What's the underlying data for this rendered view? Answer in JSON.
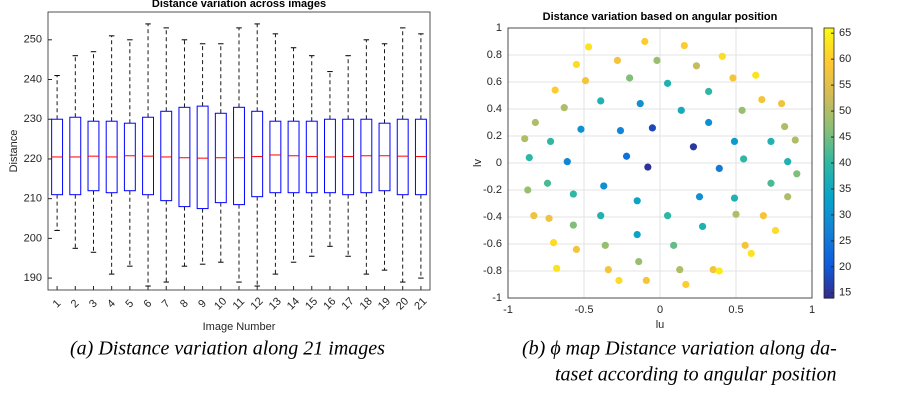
{
  "chart_data": [
    {
      "type": "box",
      "title": "Distance variation across images",
      "xlabel": "Image Number",
      "ylabel": "Distance",
      "categories": [
        "1",
        "2",
        "3",
        "4",
        "5",
        "6",
        "7",
        "8",
        "9",
        "10",
        "11",
        "12",
        "13",
        "14",
        "15",
        "16",
        "17",
        "18",
        "19",
        "20",
        "21"
      ],
      "whisker_low": [
        202,
        197.5,
        196.5,
        191,
        193,
        188,
        189,
        193,
        193.5,
        194,
        189,
        188,
        191,
        194,
        195.5,
        198,
        195.5,
        191,
        192,
        189,
        190
      ],
      "q1": [
        211,
        211,
        212,
        211.5,
        212,
        211,
        209.5,
        208,
        207.5,
        209,
        208.5,
        210.5,
        211.5,
        211.5,
        211.5,
        211.5,
        211,
        211.5,
        212,
        211,
        211
      ],
      "median": [
        220.5,
        220.5,
        220.7,
        220.5,
        220.8,
        220.7,
        220.5,
        220.3,
        220.2,
        220.3,
        220.3,
        220.6,
        221,
        220.8,
        220.6,
        220.5,
        220.6,
        220.8,
        220.8,
        220.7,
        220.6
      ],
      "q3": [
        230,
        230.5,
        229.5,
        229.5,
        229,
        230.5,
        232,
        233,
        233.3,
        231.5,
        233,
        232,
        229.5,
        229.5,
        229.5,
        230,
        230,
        230,
        229,
        230,
        230
      ],
      "whisker_high": [
        241,
        246,
        247,
        251,
        250,
        254,
        253,
        250,
        249,
        249,
        253,
        254,
        251.5,
        248,
        246,
        242,
        246,
        250,
        249,
        253,
        251.5
      ],
      "box_color": "#0000ff",
      "median_color": "#ff0000",
      "whisker_color": "#000000",
      "ylim": [
        187,
        257
      ],
      "yticks": [
        190,
        200,
        210,
        220,
        230,
        240,
        250
      ],
      "grid": false,
      "caption": [
        "(a)   Distance variation along 21 images"
      ]
    },
    {
      "type": "scatter",
      "title": "Distance variation based on angular position",
      "xlabel": "lu",
      "ylabel": "lv",
      "x": [
        -0.47,
        -0.1,
        0.16,
        0.41,
        0.63,
        -0.55,
        -0.28,
        -0.02,
        0.24,
        0.48,
        -0.69,
        -0.2,
        -0.49,
        0.05,
        0.32,
        0.67,
        -0.82,
        -0.63,
        -0.39,
        -0.13,
        0.14,
        0.54,
        0.8,
        0.82,
        -0.89,
        -0.72,
        -0.52,
        -0.26,
        -0.05,
        0.32,
        0.49,
        0.73,
        0.89,
        -0.86,
        -0.61,
        -0.22,
        0.22,
        0.55,
        0.84,
        0.9,
        -0.74,
        -0.37,
        -0.08,
        0.39,
        0.73,
        -0.87,
        -0.57,
        0.26,
        0.49,
        0.84,
        -0.15,
        -0.39,
        -0.83,
        -0.73,
        -0.57,
        0.05,
        0.28,
        0.5,
        0.68,
        0.76,
        -0.7,
        -0.36,
        -0.15,
        0.09,
        -0.55,
        0.56,
        0.6,
        -0.68,
        -0.34,
        -0.14,
        0.13,
        0.35,
        -0.27,
        -0.09,
        0.17,
        0.39
      ],
      "y": [
        0.86,
        0.9,
        0.87,
        0.79,
        0.65,
        0.73,
        0.76,
        0.76,
        0.72,
        0.63,
        0.54,
        0.63,
        0.61,
        0.59,
        0.53,
        0.47,
        0.3,
        0.41,
        0.46,
        0.44,
        0.39,
        0.39,
        0.44,
        0.27,
        0.18,
        0.16,
        0.25,
        0.24,
        0.26,
        0.3,
        0.16,
        0.16,
        0.17,
        0.04,
        0.01,
        0.05,
        0.12,
        0.03,
        0.01,
        -0.08,
        -0.15,
        -0.17,
        -0.03,
        -0.04,
        -0.15,
        -0.2,
        -0.23,
        -0.25,
        -0.26,
        -0.25,
        -0.28,
        -0.39,
        -0.39,
        -0.41,
        -0.46,
        -0.39,
        -0.47,
        -0.38,
        -0.39,
        -0.5,
        -0.59,
        -0.61,
        -0.53,
        -0.61,
        -0.64,
        -0.61,
        -0.67,
        -0.78,
        -0.79,
        -0.73,
        -0.79,
        -0.79,
        -0.87,
        -0.87,
        -0.9,
        -0.8
      ],
      "c": [
        63,
        60,
        60,
        62,
        63,
        62,
        58,
        48,
        52,
        58,
        60,
        46,
        58,
        38,
        40,
        58,
        50,
        50,
        38,
        30,
        36,
        48,
        57,
        50,
        50,
        40,
        30,
        28,
        18,
        30,
        32,
        38,
        50,
        40,
        28,
        24,
        16,
        40,
        38,
        46,
        42,
        30,
        15,
        26,
        42,
        48,
        40,
        30,
        38,
        50,
        34,
        38,
        57,
        57,
        46,
        40,
        38,
        50,
        58,
        62,
        62,
        48,
        34,
        44,
        58,
        58,
        63,
        63,
        58,
        48,
        50,
        58,
        62,
        58,
        60,
        64
      ],
      "colormap": "parula",
      "clim": [
        14,
        66
      ],
      "cticks": [
        15,
        20,
        25,
        30,
        35,
        40,
        45,
        50,
        55,
        60,
        65
      ],
      "xlim": [
        -1,
        1
      ],
      "xticks": [
        -1,
        -0.5,
        0,
        0.5,
        1
      ],
      "ylim": [
        -1,
        1
      ],
      "yticks": [
        -1,
        -0.8,
        -0.6,
        -0.4,
        -0.2,
        0,
        0.2,
        0.4,
        0.6,
        0.8,
        1
      ],
      "grid": true,
      "caption": [
        "(b)  ϕ map Distance variation along da-",
        "taset according to angular position"
      ]
    }
  ]
}
